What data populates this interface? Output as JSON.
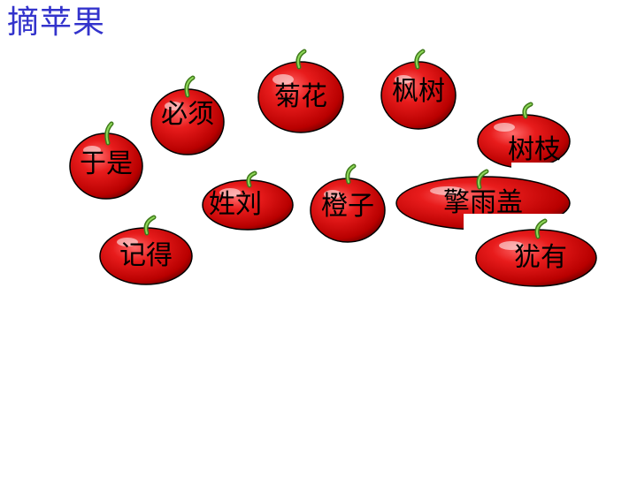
{
  "title": "摘苹果",
  "colors": {
    "title": "#3333cc",
    "apple_red": "#e01818",
    "apple_dark": "#a00000",
    "stem": "#5aa02c",
    "background": "#ffffff"
  },
  "apples": [
    {
      "id": "yushi",
      "word": "于是"
    },
    {
      "id": "bixu",
      "word": "必须"
    },
    {
      "id": "juhua",
      "word": "菊花"
    },
    {
      "id": "fengshu",
      "word": "枫树"
    },
    {
      "id": "shuzhi",
      "word": "树枝"
    },
    {
      "id": "xingliu",
      "word": "姓刘"
    },
    {
      "id": "chengzi",
      "word": "橙子"
    },
    {
      "id": "qingyu",
      "word": "擎雨盖"
    },
    {
      "id": "youyou",
      "word": "犹有"
    },
    {
      "id": "jide",
      "word": "记得"
    }
  ]
}
